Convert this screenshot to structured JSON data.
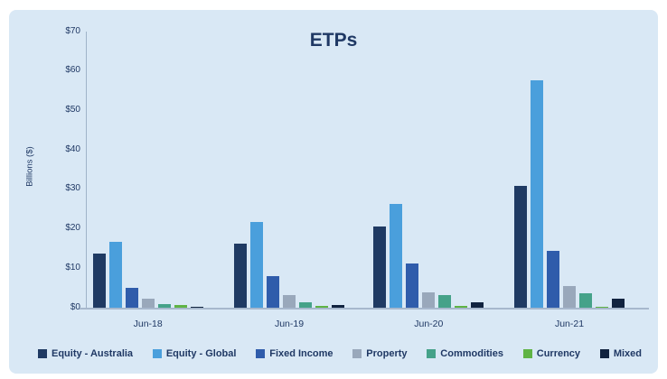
{
  "page": {
    "background": "#ffffff",
    "panel_background": "#d9e8f5",
    "text_color": "#1f3864",
    "axis_color": "#a7b8cd"
  },
  "chart_data": {
    "type": "bar",
    "title": "ETPs",
    "xlabel": "",
    "ylabel": "Billions ($)",
    "categories": [
      "Jun-18",
      "Jun-19",
      "Jun-20",
      "Jun-21"
    ],
    "series": [
      {
        "name": "Equity - Australia",
        "color": "#1f3a63",
        "values": [
          13.7,
          16.2,
          20.6,
          30.8
        ]
      },
      {
        "name": "Equity - Global",
        "color": "#4a9fdc",
        "values": [
          16.7,
          21.7,
          26.3,
          57.7
        ]
      },
      {
        "name": "Fixed Income",
        "color": "#2f5cab",
        "values": [
          5.0,
          7.9,
          11.3,
          14.5
        ]
      },
      {
        "name": "Property",
        "color": "#99a8bb",
        "values": [
          2.4,
          3.2,
          3.8,
          5.5
        ]
      },
      {
        "name": "Commodities",
        "color": "#45a289",
        "values": [
          1.0,
          1.3,
          3.1,
          3.7
        ]
      },
      {
        "name": "Currency",
        "color": "#5fb345",
        "values": [
          0.7,
          0.4,
          0.5,
          0.2
        ]
      },
      {
        "name": "Mixed",
        "color": "#11233f",
        "values": [
          0.2,
          0.7,
          1.3,
          2.4
        ]
      }
    ],
    "ylim": [
      0,
      70
    ],
    "y_ticks": [
      "$0",
      "$10",
      "$20",
      "$30",
      "$40",
      "$50",
      "$60",
      "$70"
    ],
    "grid": false,
    "legend_position": "bottom"
  }
}
